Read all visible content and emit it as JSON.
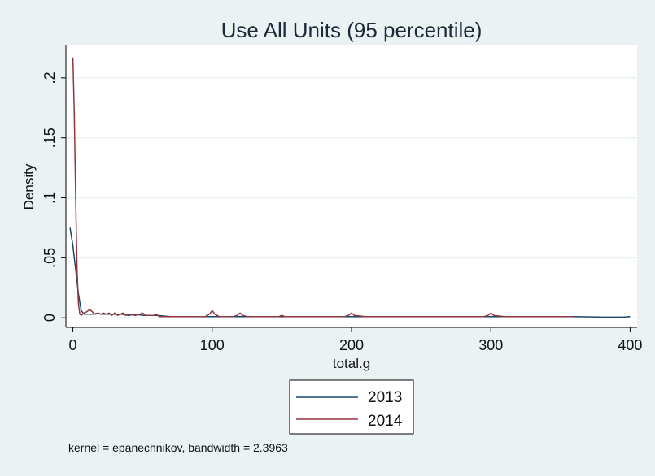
{
  "colors": {
    "background": "#eaf2f3",
    "plot_background": "#ffffff",
    "grid": "#eaf2f3",
    "axis": "#000000",
    "series_2013": "#1a476f",
    "series_2014": "#90353b"
  },
  "chart_data": {
    "type": "line",
    "title": "Use All Units (95 percentile)",
    "xlabel": "total.g",
    "ylabel": "Density",
    "xlim": [
      -5,
      405
    ],
    "ylim": [
      -0.008,
      0.227
    ],
    "x_ticks": [
      0,
      100,
      200,
      300,
      400
    ],
    "x_tick_labels": [
      "0",
      "100",
      "200",
      "300",
      "400"
    ],
    "y_ticks": [
      0,
      0.05,
      0.1,
      0.15,
      0.2
    ],
    "y_tick_labels": [
      "0",
      ".05",
      ".1",
      ".15",
      ".2"
    ],
    "grid": true,
    "legend": {
      "position": "bottom",
      "entries": [
        "2013",
        "2014"
      ]
    },
    "note": "kernel = epanechnikov, bandwidth = 2.3963",
    "series": [
      {
        "name": "2013",
        "color": "#1a476f",
        "x": [
          -2,
          0,
          2,
          4,
          6,
          8,
          10,
          12,
          15,
          18,
          20,
          25,
          30,
          35,
          40,
          45,
          50,
          55,
          60,
          70,
          80,
          90,
          100,
          110,
          120,
          130,
          150,
          170,
          200,
          230,
          250,
          280,
          300,
          320,
          340,
          360,
          380,
          395,
          400
        ],
        "y": [
          0.075,
          0.06,
          0.04,
          0.02,
          0.006,
          0.003,
          0.003,
          0.003,
          0.003,
          0.004,
          0.003,
          0.003,
          0.003,
          0.003,
          0.002,
          0.003,
          0.002,
          0.002,
          0.002,
          0.001,
          0.001,
          0.001,
          0.001,
          0.001,
          0.001,
          0.001,
          0.001,
          0.001,
          0.001,
          0.001,
          0.001,
          0.001,
          0.001,
          0.001,
          0.001,
          0.001,
          0.0005,
          0.0005,
          0.001
        ]
      },
      {
        "name": "2014",
        "color": "#90353b",
        "x": [
          0,
          1,
          2,
          3,
          4,
          5,
          6,
          7,
          8,
          10,
          12,
          14,
          16,
          18,
          20,
          22,
          24,
          26,
          28,
          30,
          32,
          34,
          36,
          38,
          40,
          45,
          48,
          50,
          52,
          55,
          58,
          60,
          62,
          65,
          70,
          80,
          90,
          95,
          98,
          100,
          102,
          105,
          110,
          115,
          118,
          120,
          122,
          125,
          130,
          140,
          148,
          150,
          152,
          160,
          175,
          180,
          185,
          195,
          198,
          200,
          202,
          210,
          230,
          240,
          245,
          260,
          280,
          295,
          298,
          300,
          302,
          310,
          330,
          350,
          360
        ],
        "y": [
          0.217,
          0.17,
          0.1,
          0.04,
          0.012,
          0.003,
          0.002,
          0.003,
          0.004,
          0.005,
          0.007,
          0.005,
          0.003,
          0.004,
          0.003,
          0.004,
          0.003,
          0.004,
          0.002,
          0.004,
          0.002,
          0.003,
          0.004,
          0.002,
          0.003,
          0.002,
          0.003,
          0.004,
          0.002,
          0.002,
          0.002,
          0.003,
          0.001,
          0.001,
          0.001,
          0.001,
          0.001,
          0.001,
          0.003,
          0.006,
          0.003,
          0.001,
          0.001,
          0.001,
          0.002,
          0.004,
          0.002,
          0.001,
          0.001,
          0.001,
          0.001,
          0.002,
          0.001,
          0.001,
          0.001,
          0.001,
          0.001,
          0.001,
          0.002,
          0.004,
          0.002,
          0.001,
          0.001,
          0.001,
          0.001,
          0.001,
          0.001,
          0.001,
          0.002,
          0.004,
          0.002,
          0.001,
          0.001,
          0.001,
          0.001
        ]
      }
    ]
  }
}
